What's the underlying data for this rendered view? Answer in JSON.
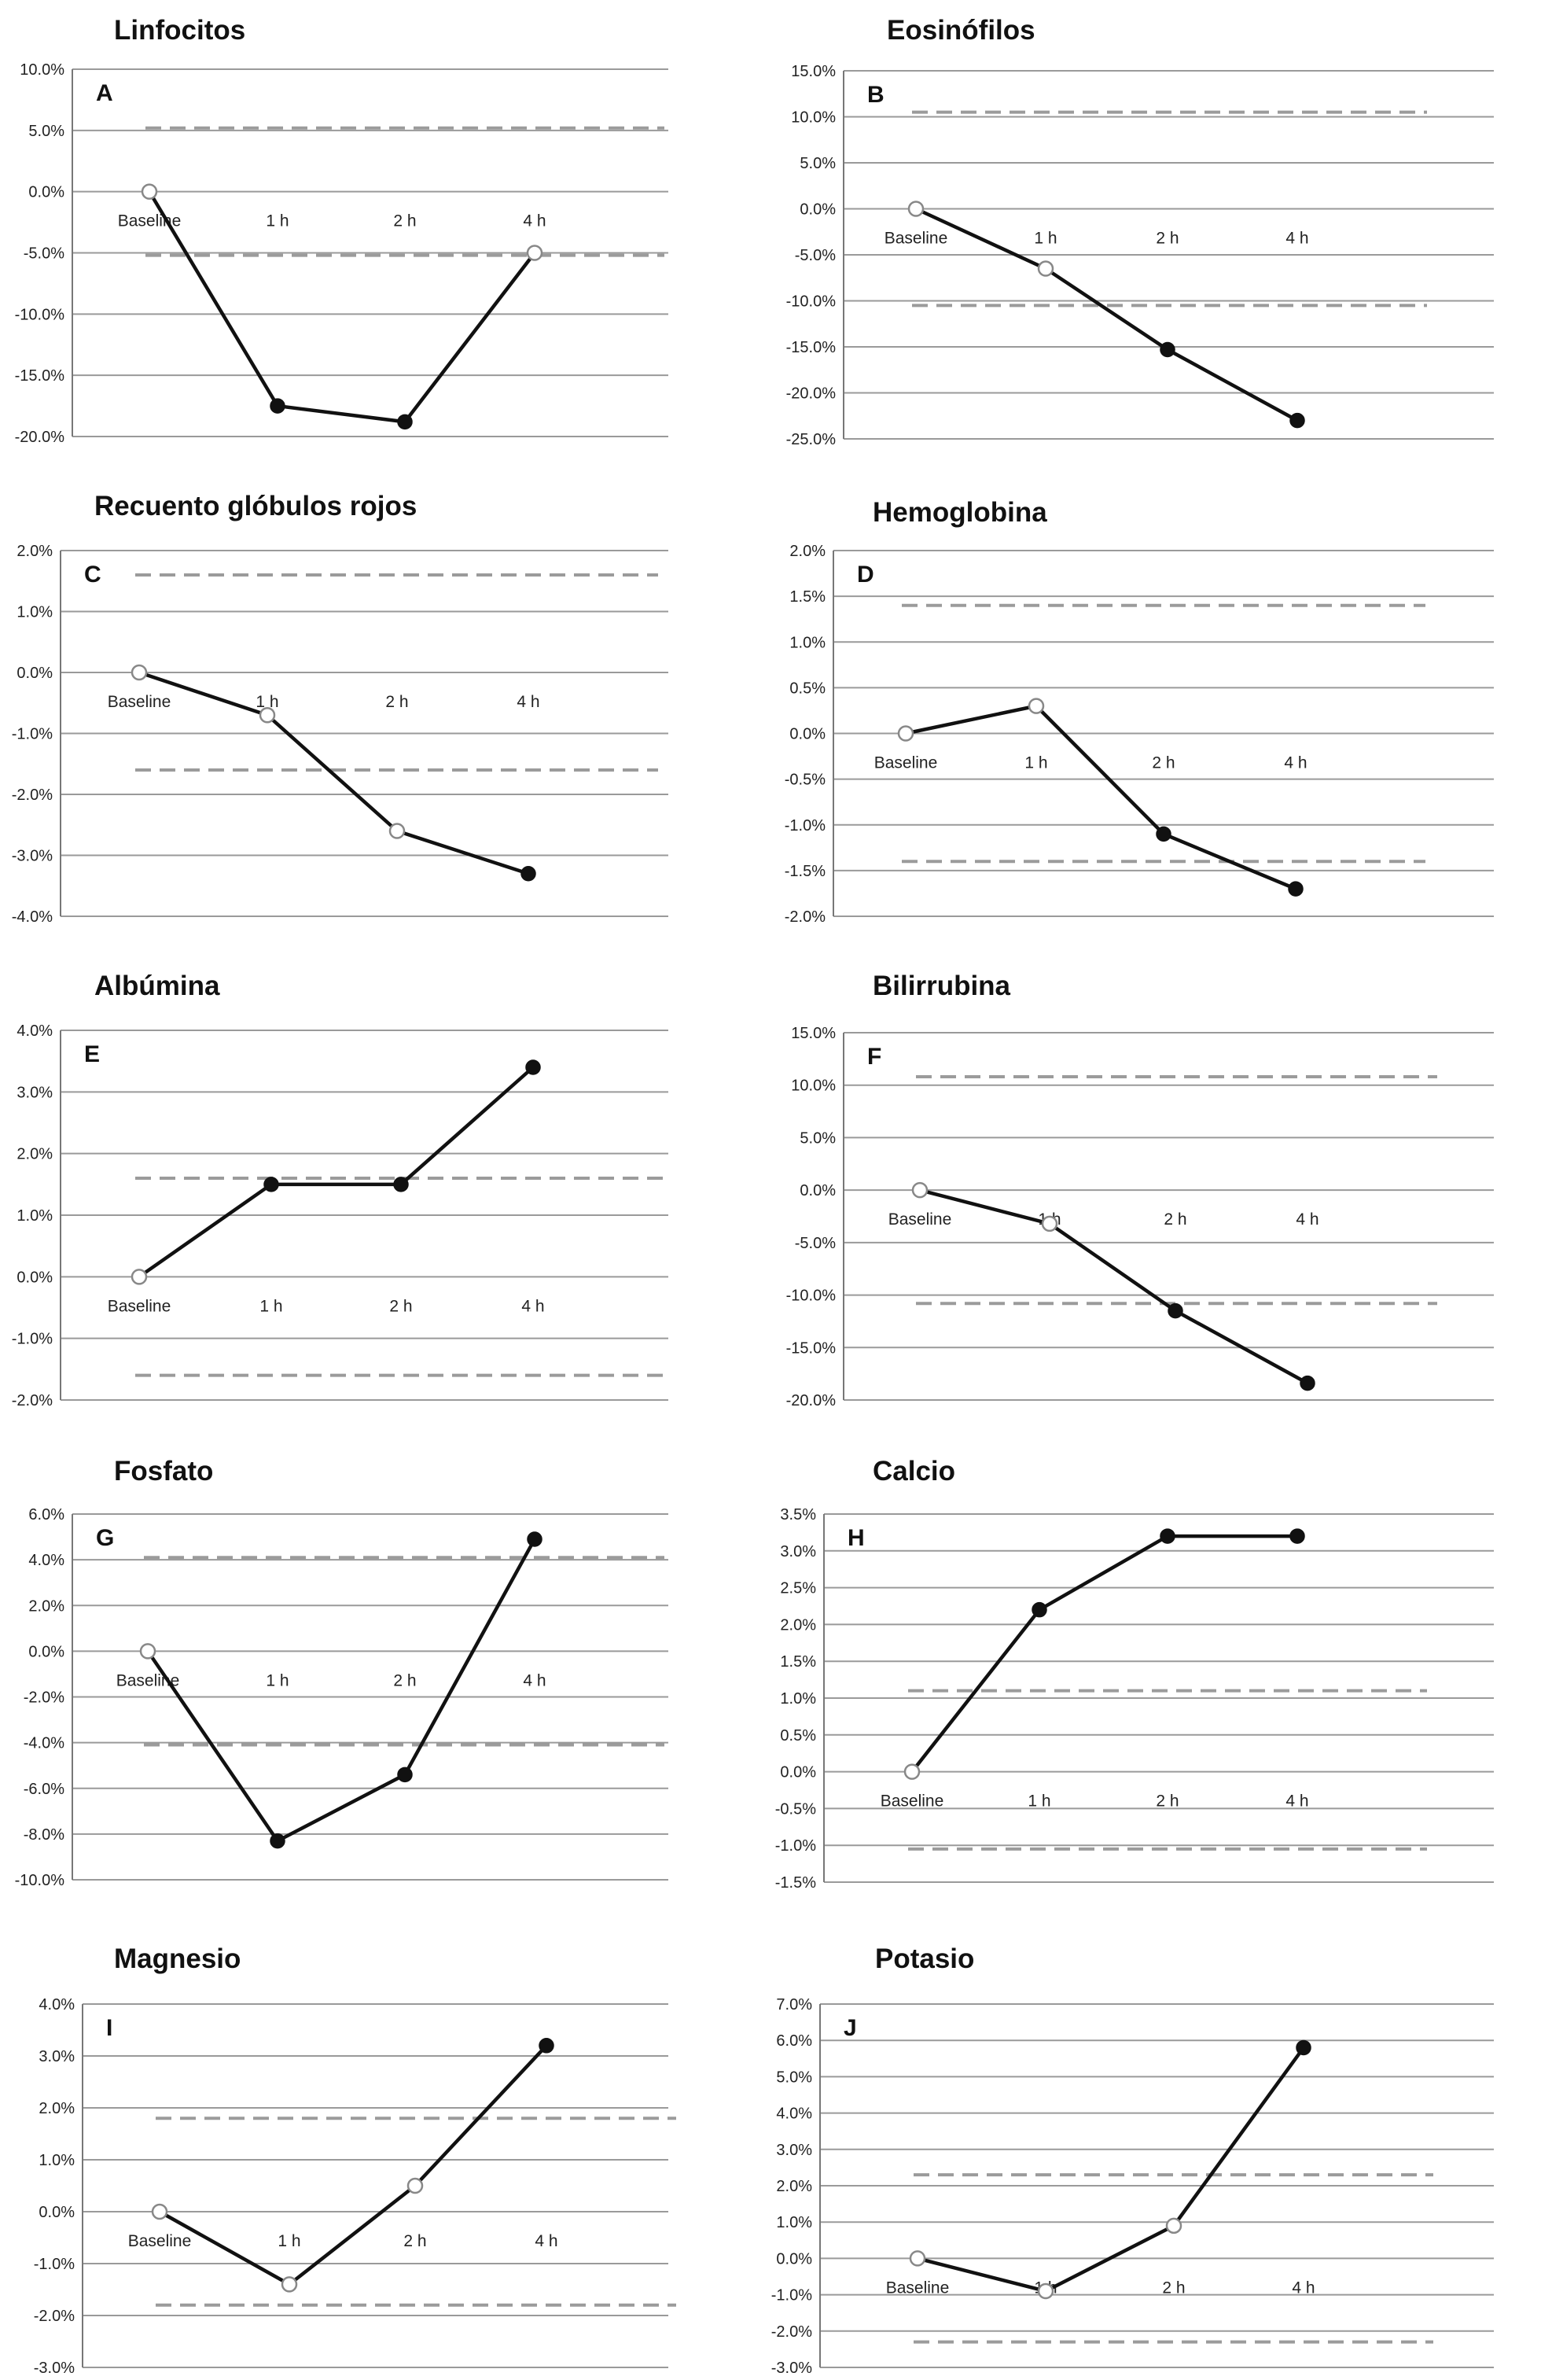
{
  "chart_data": [
    {
      "type": "line",
      "letter": "A",
      "title": "Linfocitos",
      "categories": [
        "Baseline",
        "1 h",
        "2 h",
        "4 h"
      ],
      "ylim": [
        -20,
        10
      ],
      "ystep": 5,
      "decimals": 1,
      "values": [
        0,
        -17.5,
        -18.8,
        -5
      ],
      "marker": [
        "open",
        "filled",
        "filled",
        "open"
      ],
      "ref_lines": [
        5.2,
        -5.2
      ],
      "ytick_labels": [
        "10.0%",
        "5.0%",
        "0.0%",
        "-5.0%",
        "-10.0%",
        "-15.0%",
        "-20.0%"
      ]
    },
    {
      "type": "line",
      "letter": "B",
      "title": "Eosinófilos",
      "categories": [
        "Baseline",
        "1 h",
        "2 h",
        "4 h"
      ],
      "ylim": [
        -25,
        15
      ],
      "ystep": 5,
      "decimals": 1,
      "values": [
        0,
        -6.5,
        -15.3,
        -23
      ],
      "marker": [
        "open",
        "open",
        "filled",
        "filled"
      ],
      "ref_lines": [
        10.5,
        -10.5
      ],
      "ytick_labels": [
        "15.0%",
        "10.0%",
        "5.0%",
        "0.0%",
        "-5.0%",
        "-10.0%",
        "-15.0%",
        "-20.0%",
        "-25.0%"
      ]
    },
    {
      "type": "line",
      "letter": "C",
      "title": "Recuento glóbulos rojos",
      "categories": [
        "Baseline",
        "1 h",
        "2 h",
        "4 h"
      ],
      "ylim": [
        -4,
        2
      ],
      "ystep": 1,
      "decimals": 1,
      "values": [
        0,
        -0.7,
        -2.6,
        -3.3
      ],
      "marker": [
        "open",
        "open",
        "open",
        "filled"
      ],
      "ref_lines": [
        1.6,
        -1.6
      ],
      "ytick_labels": [
        "2.0%",
        "1.0%",
        "0.0%",
        "-1.0%",
        "-2.0%",
        "-3.0%",
        "-4.0%"
      ]
    },
    {
      "type": "line",
      "letter": "D",
      "title": "Hemoglobina",
      "categories": [
        "Baseline",
        "1 h",
        "2 h",
        "4 h"
      ],
      "ylim": [
        -2,
        2
      ],
      "ystep": 0.5,
      "decimals": 1,
      "values": [
        0,
        0.3,
        -1.1,
        -1.7
      ],
      "marker": [
        "open",
        "open",
        "filled",
        "filled"
      ],
      "ref_lines": [
        1.4,
        -1.4
      ],
      "ytick_labels": [
        "2.0%",
        "1.5%",
        "1.0%",
        "0.5%",
        "0.0%",
        "-0.5%",
        "-1.0%",
        "-1.5%",
        "-2.0%"
      ]
    },
    {
      "type": "line",
      "letter": "E",
      "title": "Albúmina",
      "categories": [
        "Baseline",
        "1 h",
        "2 h",
        "4 h"
      ],
      "ylim": [
        -2,
        4
      ],
      "ystep": 1,
      "decimals": 1,
      "values": [
        0,
        1.5,
        1.5,
        3.4
      ],
      "marker": [
        "open",
        "filled",
        "filled",
        "filled"
      ],
      "ref_lines": [
        1.6,
        -1.6
      ],
      "ytick_labels": [
        "4.0%",
        "3.0%",
        "2.0%",
        "1.0%",
        "0.0%",
        "-1.0%",
        "-2.0%"
      ]
    },
    {
      "type": "line",
      "letter": "F",
      "title": "Bilirrubina",
      "categories": [
        "Baseline",
        "1 h",
        "2 h",
        "4 h"
      ],
      "ylim": [
        -20,
        15
      ],
      "ystep": 5,
      "decimals": 1,
      "values": [
        0,
        -3.2,
        -11.5,
        -18.4
      ],
      "marker": [
        "open",
        "open",
        "filled",
        "filled"
      ],
      "ref_lines": [
        10.8,
        -10.8
      ],
      "ytick_labels": [
        "15.0%",
        "10.0%",
        "5.0%",
        "0.0%",
        "-5.0%",
        "-10.0%",
        "-15.0%",
        "-20.0%"
      ]
    },
    {
      "type": "line",
      "letter": "G",
      "title": "Fosfato",
      "categories": [
        "Baseline",
        "1 h",
        "2 h",
        "4 h"
      ],
      "ylim": [
        -10,
        6
      ],
      "ystep": 2,
      "decimals": 1,
      "values": [
        0,
        -8.3,
        -5.4,
        4.9
      ],
      "marker": [
        "open",
        "filled",
        "filled",
        "filled"
      ],
      "ref_lines": [
        4.1,
        -4.1
      ],
      "ytick_labels": [
        "6.0%",
        "4.0%",
        "2.0%",
        "0.0%",
        "-2.0%",
        "-4.0%",
        "-6.0%",
        "-8.0%",
        "-10.0%"
      ]
    },
    {
      "type": "line",
      "letter": "H",
      "title": "Calcio",
      "categories": [
        "Baseline",
        "1 h",
        "2 h",
        "4 h"
      ],
      "ylim": [
        -1.5,
        3.5
      ],
      "ystep": 0.5,
      "decimals": 1,
      "values": [
        0,
        2.2,
        3.2,
        3.2
      ],
      "marker": [
        "open",
        "filled",
        "filled",
        "filled"
      ],
      "ref_lines": [
        1.1,
        -1.05
      ],
      "ytick_labels": [
        "3.5%",
        "3.0%",
        "2.5%",
        "2.0%",
        "1.5%",
        "1.0%",
        "0.5%",
        "0.0%",
        "-0.5%",
        "-1.0%",
        "-1.5%"
      ]
    },
    {
      "type": "line",
      "letter": "I",
      "title": "Magnesio",
      "categories": [
        "Baseline",
        "1 h",
        "2 h",
        "4 h"
      ],
      "ylim": [
        -3,
        4
      ],
      "ystep": 1,
      "decimals": 1,
      "values": [
        0,
        -1.4,
        0.5,
        3.2
      ],
      "marker": [
        "open",
        "open",
        "open",
        "filled"
      ],
      "ref_lines": [
        1.8,
        -1.8
      ],
      "ytick_labels": [
        "4.0%",
        "3.0%",
        "2.0%",
        "1.0%",
        "0.0%",
        "-1.0%",
        "-2.0%",
        "-3.0%"
      ]
    },
    {
      "type": "line",
      "letter": "J",
      "title": "Potasio",
      "categories": [
        "Baseline",
        "1 h",
        "2 h",
        "4 h"
      ],
      "ylim": [
        -3,
        7
      ],
      "ystep": 1,
      "decimals": 1,
      "values": [
        0,
        -0.9,
        0.9,
        5.8
      ],
      "marker": [
        "open",
        "open",
        "open",
        "filled"
      ],
      "ref_lines": [
        2.3,
        -2.3
      ],
      "ytick_labels": [
        "7.0%",
        "6.0%",
        "5.0%",
        "4.0%",
        "3.0%",
        "2.0%",
        "1.0%",
        "0.0%",
        "-1.0%",
        "-2.0%",
        "-3.0%"
      ]
    }
  ],
  "colors": {
    "line": "#111111",
    "grid": "#9a9a9a",
    "ref": "#9b9b9b",
    "open_marker": "#888888"
  }
}
